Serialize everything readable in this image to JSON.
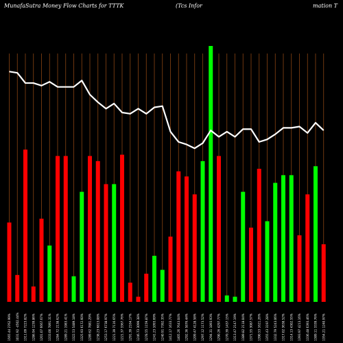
{
  "chart_data": {
    "type": "bar",
    "title_left": "MunafaSutra  Money Flow  Charts for TTTK",
    "title_mid": "(Tcs Infor",
    "title_right": "mation  T",
    "colors": {
      "background": "#000000",
      "grid": "#8B4513",
      "up": "#00FF00",
      "down": "#FF0000",
      "line": "#FFFFFF"
    },
    "ylim": [
      0,
      1
    ],
    "grid": true,
    "series": [
      {
        "values": [
          0.31,
          0.105,
          0.595,
          0.06,
          0.325,
          0.22,
          0.57,
          0.57,
          0.1,
          0.43,
          0.57,
          0.55,
          0.46,
          0.46,
          0.575,
          0.075,
          0.02,
          0.11,
          0.18,
          0.125,
          0.255,
          0.51,
          0.49,
          0.42,
          0.55,
          1.0,
          0.57,
          0.025,
          0.02,
          0.43,
          0.29,
          0.52,
          0.315,
          0.465,
          0.495,
          0.495,
          0.26,
          0.42,
          0.53,
          0.225
        ],
        "direction": [
          "down",
          "down",
          "down",
          "down",
          "down",
          "up",
          "down",
          "down",
          "up",
          "up",
          "down",
          "down",
          "down",
          "up",
          "down",
          "down",
          "down",
          "down",
          "up",
          "up",
          "down",
          "down",
          "down",
          "down",
          "up",
          "up",
          "down",
          "up",
          "up",
          "up",
          "down",
          "down",
          "up",
          "up",
          "up",
          "up",
          "down",
          "down",
          "up",
          "down"
        ]
      },
      {
        "values": [
          0.9,
          0.895,
          0.855,
          0.855,
          0.845,
          0.86,
          0.84,
          0.84,
          0.84,
          0.865,
          0.81,
          0.78,
          0.755,
          0.775,
          0.74,
          0.735,
          0.755,
          0.735,
          0.76,
          0.765,
          0.665,
          0.625,
          0.615,
          0.6,
          0.62,
          0.67,
          0.645,
          0.665,
          0.645,
          0.675,
          0.675,
          0.625,
          0.635,
          0.655,
          0.68,
          0.68,
          0.685,
          0.66,
          0.7,
          0.67
        ]
      }
    ],
    "categories": [
      "1565.44 2762.99%",
      "1031.92 -4502.44%",
      "1311.09 7223.82%",
      "1286.94 1239.86%",
      "1201.07 6667.67%",
      "1333.00 7891.31%",
      "1284.72 2138.62%",
      "1289.21 1983.41%",
      "1322.53 5489.18%",
      "1325.93 6172.60%",
      "1289.62 7881.29%",
      "1238.23 6813.08%",
      "1253.17 6738.97%",
      "1221.39 7116.65%",
      "1221.37 3367.76%",
      "1291.39 2164.17%",
      "1246.73 3099.38%",
      "1278.55 1159.87%",
      "1241.23 1093.69%",
      "1240.91 7392.35%",
      "1412.17 1633.77%",
      "1405.26 7643.04%",
      "1292.36 5876.44%",
      "1209.47 4128.58%",
      "1297.12 1173.52%",
      "1294.31 1893.93%",
      "1290.26 4297.77%",
      "1270.39 1437.15%",
      "1313.47 2147.19%",
      "1389.82 2118.04%",
      "1371.55 3087.57%",
      "1390.53 1621.26%",
      "1355.43 3197.28%",
      "1332.79 5243.06%",
      "1317.02 3638.52%",
      "1314.13 4302.55%",
      "1393.97 4213.16%",
      "1336.48 6393.46%",
      "1389.11 3339.76%",
      "1354.21 1240.97%"
    ]
  }
}
